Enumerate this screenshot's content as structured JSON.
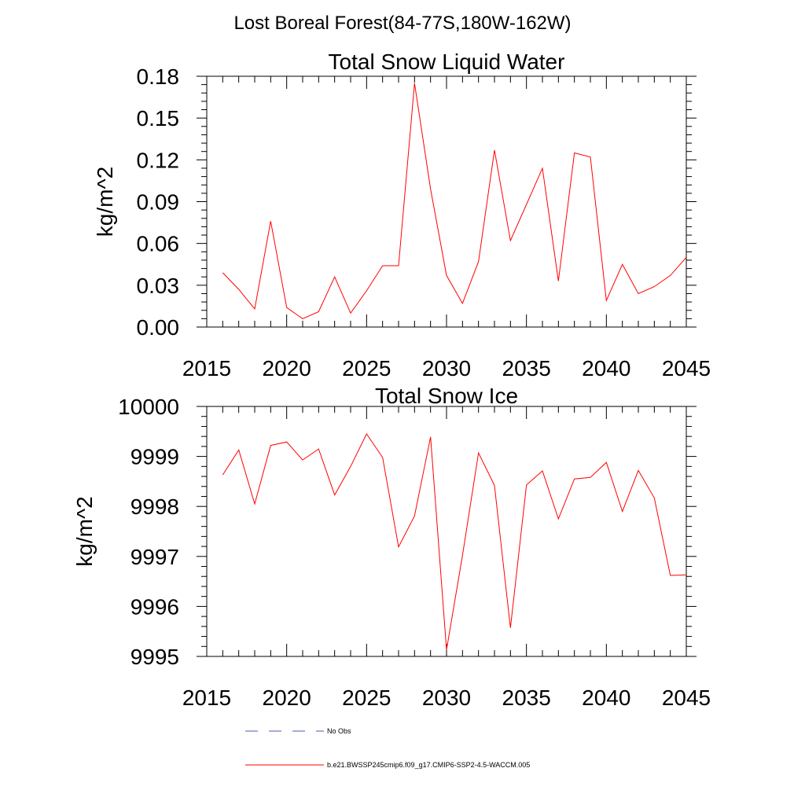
{
  "figure": {
    "title": "Lost Boreal Forest(84-77S,180W-162W)"
  },
  "legend": {
    "items": [
      {
        "label": "No Obs",
        "color": "#4a5ea8",
        "style": "dashed"
      },
      {
        "label": "b.e21.BWSSP245cmip6.f09_g17.CMIP6-SSP2-4.5-WACCM.005",
        "color": "#ff0000",
        "style": "solid"
      }
    ]
  },
  "chart_data": [
    {
      "type": "line",
      "title": "Total Snow Liquid Water",
      "xlabel": "",
      "ylabel": "kg/m^2",
      "xlim": [
        2015,
        2045
      ],
      "ylim": [
        0.0,
        0.18
      ],
      "xticks": [
        2015,
        2020,
        2025,
        2030,
        2035,
        2040,
        2045
      ],
      "xtick_labels": [
        "2015",
        "2020",
        "2025",
        "2030",
        "2035",
        "2040",
        "2045"
      ],
      "yticks": [
        0.0,
        0.03,
        0.06,
        0.09,
        0.12,
        0.15,
        0.18
      ],
      "ytick_labels": [
        "0.00",
        "0.03",
        "0.06",
        "0.09",
        "0.12",
        "0.15",
        "0.18"
      ],
      "grid": false,
      "series": [
        {
          "name": "b.e21.BWSSP245cmip6.f09_g17.CMIP6-SSP2-4.5-WACCM.005",
          "color": "#ff0000",
          "x": [
            2016,
            2017,
            2018,
            2019,
            2020,
            2021,
            2022,
            2023,
            2024,
            2025,
            2026,
            2027,
            2028,
            2029,
            2030,
            2031,
            2032,
            2033,
            2034,
            2035,
            2036,
            2037,
            2038,
            2039,
            2040,
            2041,
            2042,
            2043,
            2044,
            2045
          ],
          "values": [
            0.039,
            0.027,
            0.013,
            0.076,
            0.014,
            0.006,
            0.011,
            0.036,
            0.01,
            0.026,
            0.044,
            0.044,
            0.175,
            0.099,
            0.037,
            0.017,
            0.047,
            0.127,
            0.062,
            0.088,
            0.114,
            0.033,
            0.125,
            0.122,
            0.019,
            0.045,
            0.024,
            0.029,
            0.037,
            0.05
          ]
        }
      ]
    },
    {
      "type": "line",
      "title": "Total Snow Ice",
      "xlabel": "",
      "ylabel": "kg/m^2",
      "xlim": [
        2015,
        2045
      ],
      "ylim": [
        9995,
        10000
      ],
      "xticks": [
        2015,
        2020,
        2025,
        2030,
        2035,
        2040,
        2045
      ],
      "xtick_labels": [
        "2015",
        "2020",
        "2025",
        "2030",
        "2035",
        "2040",
        "2045"
      ],
      "yticks": [
        9995,
        9996,
        9997,
        9998,
        9999,
        10000
      ],
      "ytick_labels": [
        "9995",
        "9996",
        "9997",
        "9998",
        "9999",
        "10000"
      ],
      "grid": false,
      "series": [
        {
          "name": "b.e21.BWSSP245cmip6.f09_g17.CMIP6-SSP2-4.5-WACCM.005",
          "color": "#ff0000",
          "x": [
            2016,
            2017,
            2018,
            2019,
            2020,
            2021,
            2022,
            2023,
            2024,
            2025,
            2026,
            2027,
            2028,
            2029,
            2030,
            2031,
            2032,
            2033,
            2034,
            2035,
            2036,
            2037,
            2038,
            2039,
            2040,
            2041,
            2042,
            2043,
            2044,
            2045
          ],
          "values": [
            9998.63,
            9999.13,
            9998.05,
            9999.22,
            9999.29,
            9998.93,
            9999.15,
            9998.23,
            9998.8,
            9999.45,
            9998.98,
            9997.19,
            9997.81,
            9999.39,
            9995.13,
            9997.02,
            9999.07,
            9998.42,
            9995.57,
            9998.43,
            9998.71,
            9997.75,
            9998.55,
            9998.58,
            9998.88,
            9997.9,
            9998.72,
            9998.17,
            9996.62,
            9996.63
          ]
        }
      ]
    }
  ]
}
